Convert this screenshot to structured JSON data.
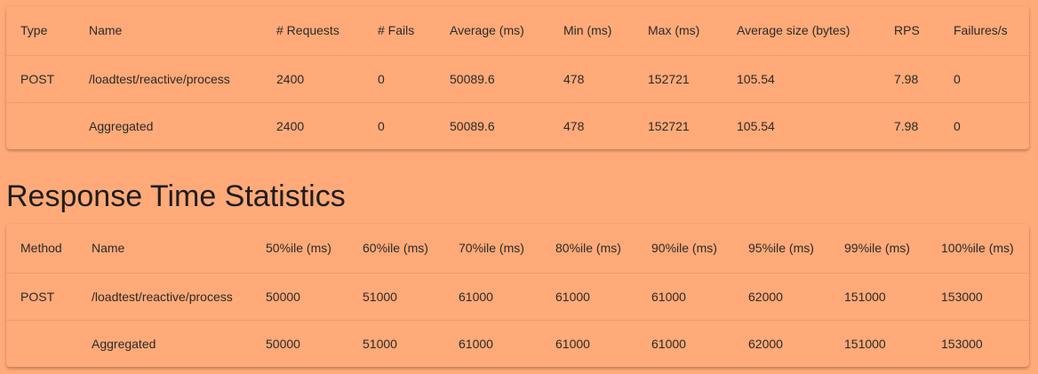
{
  "request_stats": {
    "headers": [
      "Type",
      "Name",
      "# Requests",
      "# Fails",
      "Average (ms)",
      "Min (ms)",
      "Max (ms)",
      "Average size (bytes)",
      "RPS",
      "Failures/s"
    ],
    "rows": [
      [
        "POST",
        "/loadtest/reactive/process",
        "2400",
        "0",
        "50089.6",
        "478",
        "152721",
        "105.54",
        "7.98",
        "0"
      ],
      [
        "",
        "Aggregated",
        "2400",
        "0",
        "50089.6",
        "478",
        "152721",
        "105.54",
        "7.98",
        "0"
      ]
    ]
  },
  "response_time": {
    "title": "Response Time Statistics",
    "headers": [
      "Method",
      "Name",
      "50%ile (ms)",
      "60%ile (ms)",
      "70%ile (ms)",
      "80%ile (ms)",
      "90%ile (ms)",
      "95%ile (ms)",
      "99%ile (ms)",
      "100%ile (ms)"
    ],
    "rows": [
      [
        "POST",
        "/loadtest/reactive/process",
        "50000",
        "51000",
        "61000",
        "61000",
        "61000",
        "62000",
        "151000",
        "153000"
      ],
      [
        "",
        "Aggregated",
        "50000",
        "51000",
        "61000",
        "61000",
        "61000",
        "62000",
        "151000",
        "153000"
      ]
    ]
  }
}
